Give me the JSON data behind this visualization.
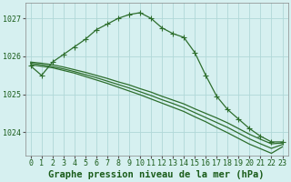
{
  "title": "Graphe pression niveau de la mer (hPa)",
  "background_color": "#d6f0f0",
  "grid_color": "#b0d8d8",
  "line_color": "#2d6e2d",
  "marker_color": "#2d6e2d",
  "hours": [
    0,
    1,
    2,
    3,
    4,
    5,
    6,
    7,
    8,
    9,
    10,
    11,
    12,
    13,
    14,
    15,
    16,
    17,
    18,
    19,
    20,
    21,
    22,
    23
  ],
  "series_curve": [
    1025.75,
    1025.5,
    1025.85,
    1026.05,
    1026.25,
    1026.45,
    1026.7,
    1026.85,
    1027.0,
    1027.1,
    1027.15,
    1027.0,
    1026.75,
    1026.6,
    1026.5,
    1026.1,
    1025.5,
    1024.95,
    1024.6,
    1024.35,
    1024.1,
    1023.9,
    1023.75,
    1023.75
  ],
  "series_diag1": [
    1025.85,
    1025.82,
    1025.78,
    1025.72,
    1025.65,
    1025.58,
    1025.5,
    1025.42,
    1025.33,
    1025.25,
    1025.15,
    1025.06,
    1024.95,
    1024.85,
    1024.75,
    1024.62,
    1024.5,
    1024.38,
    1024.25,
    1024.1,
    1023.95,
    1023.82,
    1023.7,
    1023.72
  ],
  "series_diag2": [
    1025.82,
    1025.78,
    1025.73,
    1025.67,
    1025.6,
    1025.52,
    1025.44,
    1025.35,
    1025.26,
    1025.17,
    1025.07,
    1024.97,
    1024.86,
    1024.76,
    1024.65,
    1024.52,
    1024.39,
    1024.26,
    1024.13,
    1023.98,
    1023.83,
    1023.7,
    1023.58,
    1023.68
  ],
  "series_diag3": [
    1025.78,
    1025.74,
    1025.7,
    1025.63,
    1025.56,
    1025.47,
    1025.38,
    1025.29,
    1025.19,
    1025.09,
    1024.99,
    1024.88,
    1024.77,
    1024.66,
    1024.55,
    1024.41,
    1024.28,
    1024.13,
    1023.99,
    1023.84,
    1023.69,
    1023.57,
    1023.45,
    1023.62
  ],
  "ylim": [
    1023.4,
    1027.4
  ],
  "yticks": [
    1024,
    1025,
    1026,
    1027
  ],
  "xticks": [
    0,
    1,
    2,
    3,
    4,
    5,
    6,
    7,
    8,
    9,
    10,
    11,
    12,
    13,
    14,
    15,
    16,
    17,
    18,
    19,
    20,
    21,
    22,
    23
  ],
  "title_fontsize": 7.5,
  "tick_fontsize": 6,
  "marker_size": 2.5
}
